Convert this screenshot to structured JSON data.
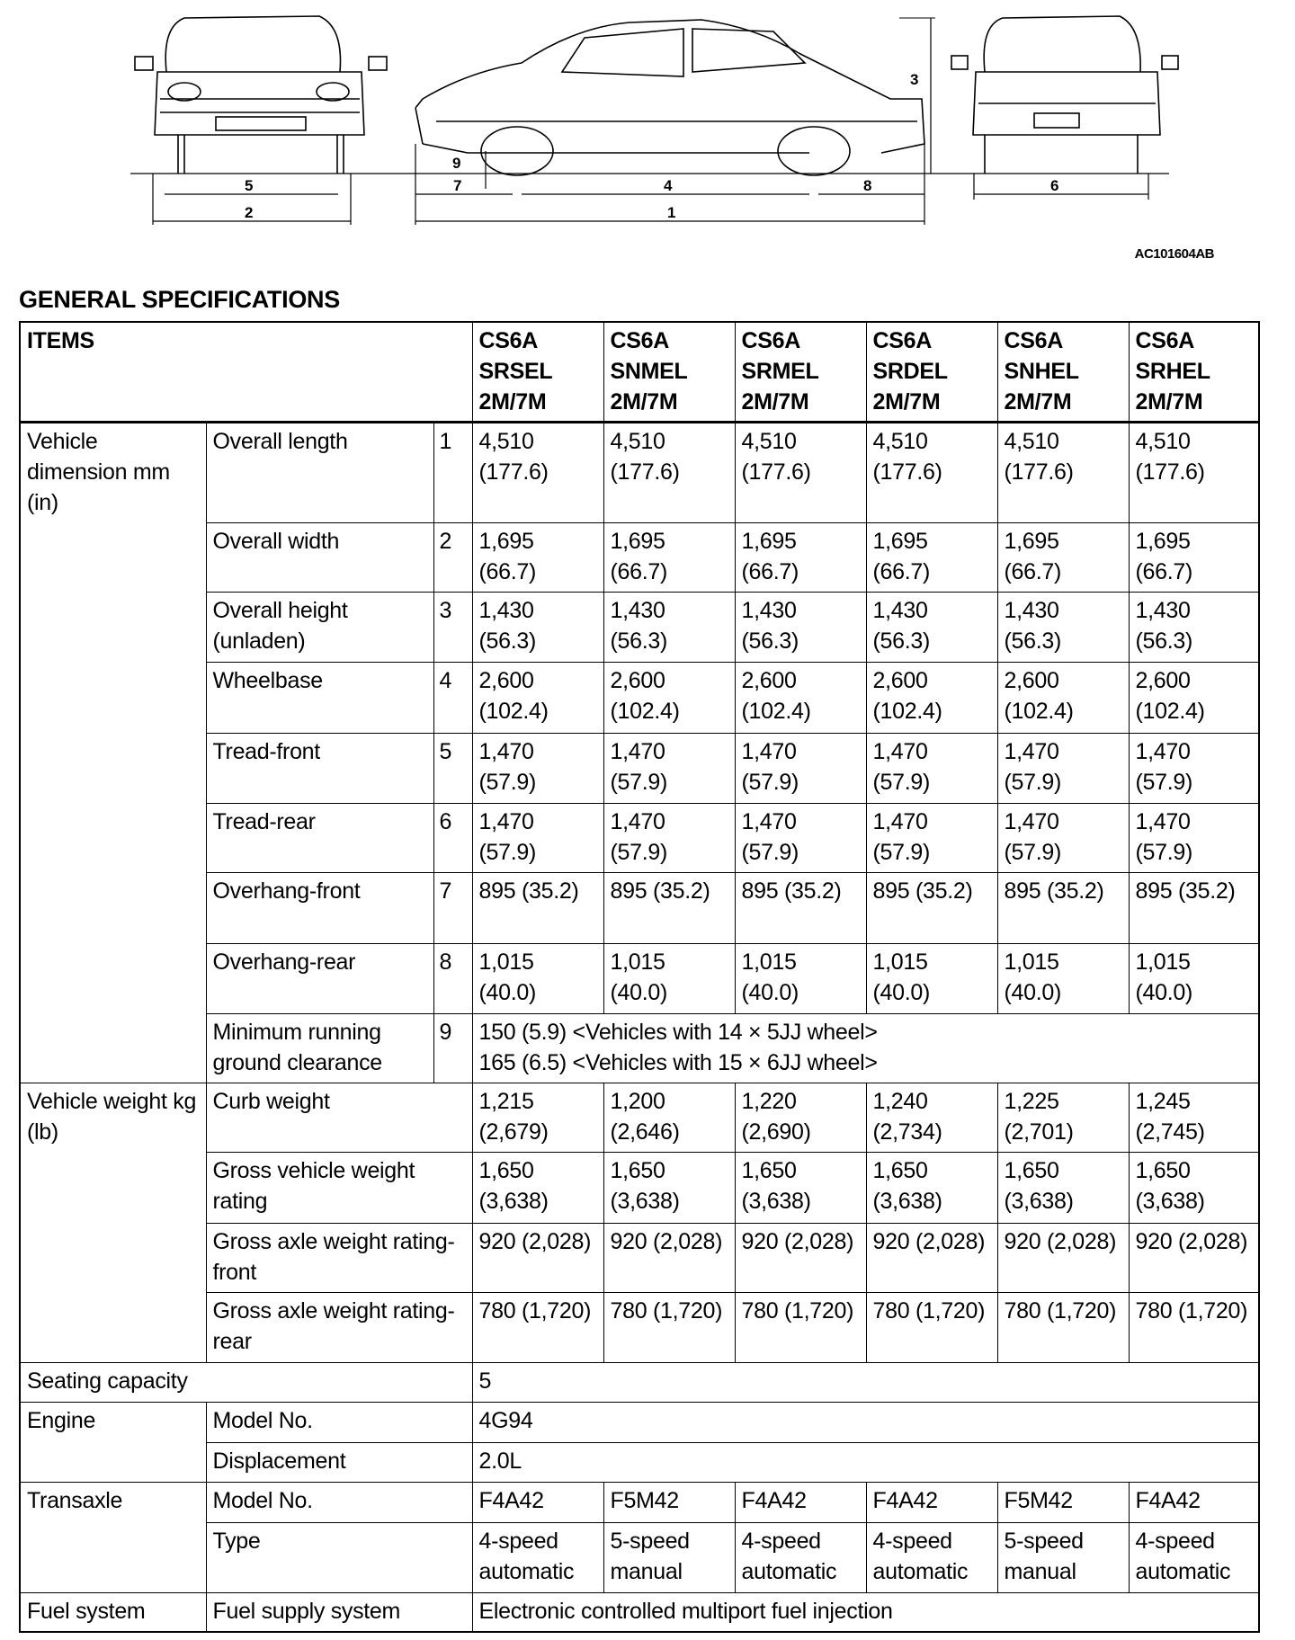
{
  "diagram": {
    "code": "AC101604AB",
    "dimension_labels": [
      "1",
      "2",
      "3",
      "4",
      "5",
      "6",
      "7",
      "8",
      "9"
    ]
  },
  "title": "GENERAL SPECIFICATIONS",
  "table": {
    "items_header": "ITEMS",
    "models": [
      [
        "CS6A",
        "SRSEL",
        "2M/7M"
      ],
      [
        "CS6A",
        "SNMEL",
        "2M/7M"
      ],
      [
        "CS6A",
        "SRMEL",
        "2M/7M"
      ],
      [
        "CS6A",
        "SRDEL",
        "2M/7M"
      ],
      [
        "CS6A",
        "SNHEL",
        "2M/7M"
      ],
      [
        "CS6A",
        "SRHEL",
        "2M/7M"
      ]
    ],
    "dimension_group": "Vehicle dimension mm (in)",
    "dimensions": [
      {
        "item": "Overall length",
        "no": "1",
        "values": [
          "4,510 (177.6)",
          "4,510 (177.6)",
          "4,510 (177.6)",
          "4,510 (177.6)",
          "4,510 (177.6)",
          "4,510 (177.6)"
        ]
      },
      {
        "item": "Overall width",
        "no": "2",
        "values": [
          "1,695 (66.7)",
          "1,695 (66.7)",
          "1,695 (66.7)",
          "1,695 (66.7)",
          "1,695 (66.7)",
          "1,695 (66.7)"
        ]
      },
      {
        "item": "Overall height (unladen)",
        "no": "3",
        "values": [
          "1,430 (56.3)",
          "1,430 (56.3)",
          "1,430 (56.3)",
          "1,430 (56.3)",
          "1,430 (56.3)",
          "1,430 (56.3)"
        ]
      },
      {
        "item": "Wheelbase",
        "no": "4",
        "values": [
          "2,600 (102.4)",
          "2,600 (102.4)",
          "2,600 (102.4)",
          "2,600 (102.4)",
          "2,600 (102.4)",
          "2,600 (102.4)"
        ]
      },
      {
        "item": "Tread-front",
        "no": "5",
        "values": [
          "1,470 (57.9)",
          "1,470 (57.9)",
          "1,470 (57.9)",
          "1,470 (57.9)",
          "1,470 (57.9)",
          "1,470 (57.9)"
        ]
      },
      {
        "item": "Tread-rear",
        "no": "6",
        "values": [
          "1,470 (57.9)",
          "1,470 (57.9)",
          "1,470 (57.9)",
          "1,470 (57.9)",
          "1,470 (57.9)",
          "1,470 (57.9)"
        ]
      },
      {
        "item": "Overhang-front",
        "no": "7",
        "values": [
          "895 (35.2)",
          "895 (35.2)",
          "895 (35.2)",
          "895 (35.2)",
          "895 (35.2)",
          "895 (35.2)"
        ]
      },
      {
        "item": "Overhang-rear",
        "no": "8",
        "values": [
          "1,015 (40.0)",
          "1,015 (40.0)",
          "1,015 (40.0)",
          "1,015 (40.0)",
          "1,015 (40.0)",
          "1,015 (40.0)"
        ]
      }
    ],
    "clearance": {
      "item": "Minimum running ground clearance",
      "no": "9",
      "line1": "150 (5.9) <Vehicles with 14 × 5JJ wheel>",
      "line2": "165 (6.5) <Vehicles with 15 × 6JJ wheel>"
    },
    "weight_group": "Vehicle weight kg (lb)",
    "weights": [
      {
        "item": "Curb weight",
        "values": [
          "1,215 (2,679)",
          "1,200 (2,646)",
          "1,220 (2,690)",
          "1,240 (2,734)",
          "1,225 (2,701)",
          "1,245 (2,745)"
        ]
      },
      {
        "item": "Gross vehicle weight rating",
        "values": [
          "1,650 (3,638)",
          "1,650 (3,638)",
          "1,650 (3,638)",
          "1,650 (3,638)",
          "1,650 (3,638)",
          "1,650 (3,638)"
        ]
      },
      {
        "item": "Gross axle weight rating-front",
        "values": [
          "920 (2,028)",
          "920 (2,028)",
          "920 (2,028)",
          "920 (2,028)",
          "920 (2,028)",
          "920 (2,028)"
        ]
      },
      {
        "item": "Gross axle weight rating-rear",
        "values": [
          "780 (1,720)",
          "780 (1,720)",
          "780 (1,720)",
          "780 (1,720)",
          "780 (1,720)",
          "780 (1,720)"
        ]
      }
    ],
    "seating": {
      "label": "Seating capacity",
      "value": "5"
    },
    "engine": {
      "label": "Engine",
      "model_label": "Model No.",
      "model": "4G94",
      "disp_label": "Displacement",
      "disp": "2.0L"
    },
    "transaxle": {
      "label": "Transaxle",
      "model_label": "Model No.",
      "models": [
        "F4A42",
        "F5M42",
        "F4A42",
        "F4A42",
        "F5M42",
        "F4A42"
      ],
      "type_label": "Type",
      "types": [
        "4-speed automatic",
        "5-speed manual",
        "4-speed automatic",
        "4-speed automatic",
        "5-speed manual",
        "4-speed automatic"
      ]
    },
    "fuel": {
      "label": "Fuel system",
      "item": "Fuel supply system",
      "value": "Electronic controlled multiport fuel injection"
    }
  }
}
